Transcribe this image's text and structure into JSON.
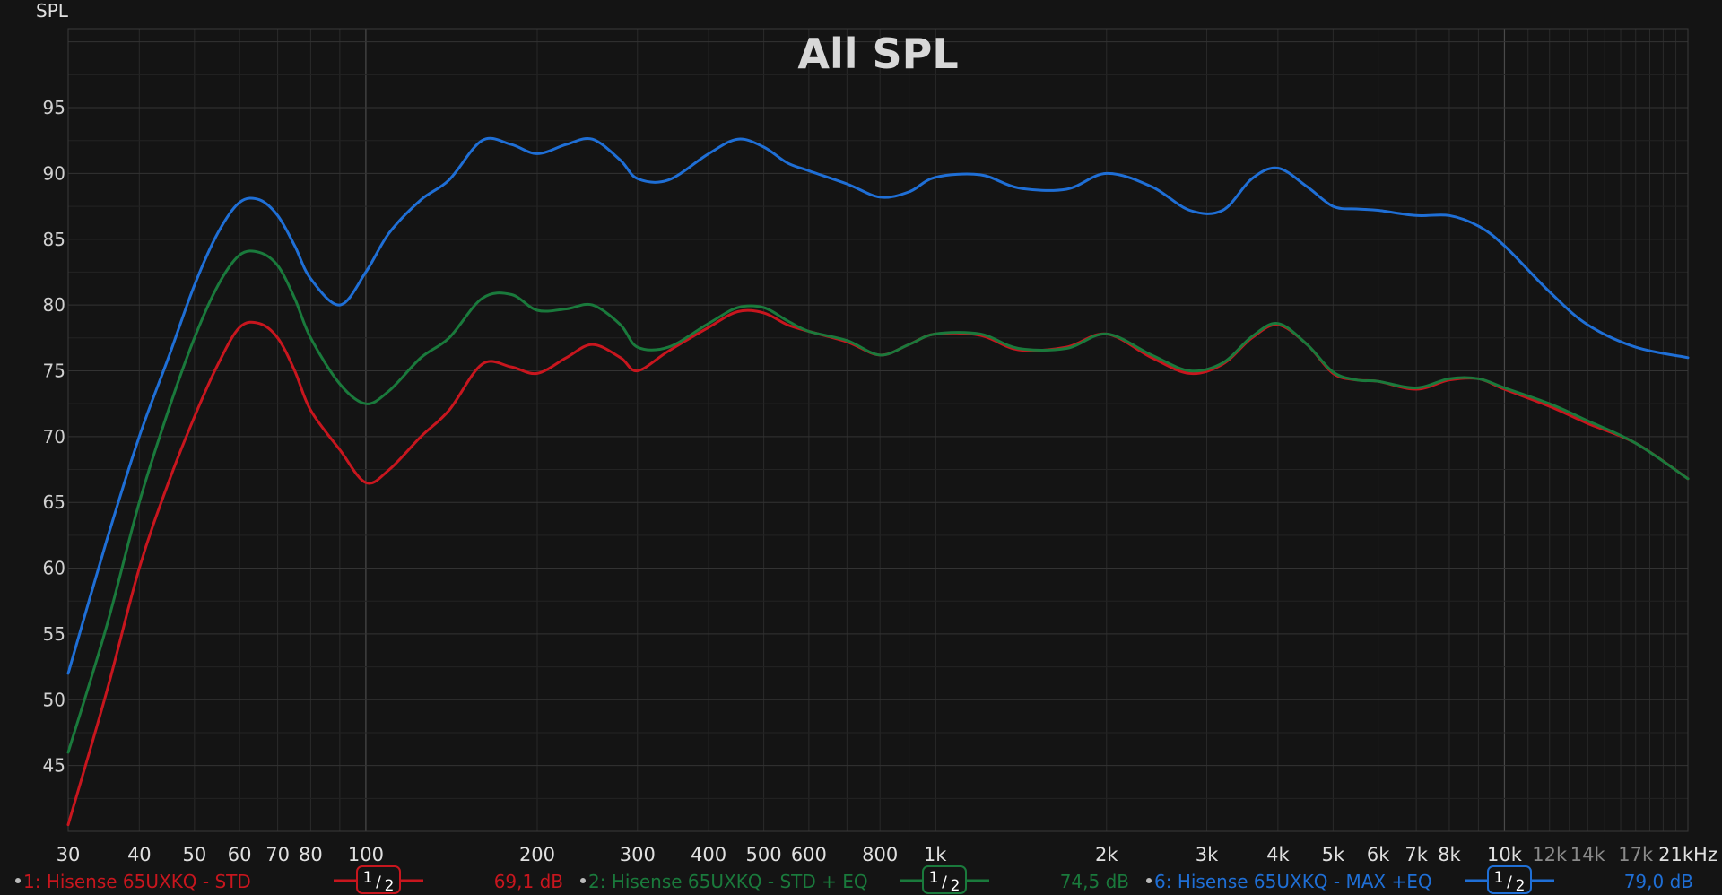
{
  "chart_data": {
    "type": "line",
    "title": "All SPL",
    "ylabel": "SPL",
    "xlabel": "",
    "x_scale": "log",
    "xlim": [
      30,
      21000
    ],
    "ylim": [
      40,
      101
    ],
    "grid": true,
    "y_ticks": [
      45,
      50,
      55,
      60,
      65,
      70,
      75,
      80,
      85,
      90,
      95
    ],
    "x_ticks": [
      {
        "label": "30",
        "value": 30,
        "major": true
      },
      {
        "label": "40",
        "value": 40,
        "major": true
      },
      {
        "label": "50",
        "value": 50,
        "major": true
      },
      {
        "label": "60",
        "value": 60,
        "major": true
      },
      {
        "label": "70",
        "value": 70,
        "major": true
      },
      {
        "label": "80",
        "value": 80,
        "major": true
      },
      {
        "label": "100",
        "value": 100,
        "major": true
      },
      {
        "label": "200",
        "value": 200,
        "major": true
      },
      {
        "label": "300",
        "value": 300,
        "major": true
      },
      {
        "label": "400",
        "value": 400,
        "major": true
      },
      {
        "label": "500",
        "value": 500,
        "major": true
      },
      {
        "label": "600",
        "value": 600,
        "major": true
      },
      {
        "label": "800",
        "value": 800,
        "major": true
      },
      {
        "label": "1k",
        "value": 1000,
        "major": true
      },
      {
        "label": "2k",
        "value": 2000,
        "major": true
      },
      {
        "label": "3k",
        "value": 3000,
        "major": true
      },
      {
        "label": "4k",
        "value": 4000,
        "major": true
      },
      {
        "label": "5k",
        "value": 5000,
        "major": true
      },
      {
        "label": "6k",
        "value": 6000,
        "major": true
      },
      {
        "label": "7k",
        "value": 7000,
        "major": true
      },
      {
        "label": "8k",
        "value": 8000,
        "major": true
      },
      {
        "label": "10k",
        "value": 10000,
        "major": true
      },
      {
        "label": "12k",
        "value": 12000,
        "major": false
      },
      {
        "label": "14k",
        "value": 14000,
        "major": false
      },
      {
        "label": "17k",
        "value": 17000,
        "major": false
      },
      {
        "label": "21kHz",
        "value": 21000,
        "major": true
      }
    ],
    "x": [
      30,
      35,
      40,
      45,
      50,
      55,
      60,
      65,
      70,
      75,
      80,
      90,
      100,
      110,
      125,
      140,
      160,
      180,
      200,
      225,
      250,
      280,
      300,
      340,
      400,
      450,
      500,
      550,
      600,
      700,
      800,
      900,
      1000,
      1200,
      1400,
      1700,
      2000,
      2400,
      2800,
      3200,
      3600,
      4000,
      4500,
      5000,
      5500,
      6000,
      7000,
      8000,
      9000,
      10000,
      12000,
      14000,
      17000,
      21000
    ],
    "series": [
      {
        "name": "1: Hisense 65UXKQ - STD",
        "color": "#c8161e",
        "legend_value": "69,1 dB",
        "smoothing": "1/2",
        "values": [
          40.5,
          50.5,
          60,
          66.5,
          71.5,
          75.5,
          78.3,
          78.6,
          77.5,
          75,
          72,
          69,
          66.5,
          67.5,
          70,
          72,
          75.5,
          75.3,
          74.8,
          76,
          77,
          76,
          75,
          76.5,
          78.3,
          79.5,
          79.4,
          78.5,
          78,
          77.2,
          76.2,
          77,
          77.8,
          77.7,
          76.6,
          76.8,
          77.8,
          76,
          74.8,
          75.5,
          77.5,
          78.5,
          77,
          74.8,
          74.3,
          74.2,
          73.6,
          74.3,
          74.4,
          73.6,
          72.3,
          71,
          69.5,
          66.8
        ]
      },
      {
        "name": "2: Hisense 65UXKQ - STD + EQ",
        "color": "#1a7a3c",
        "legend_value": "74,5 dB",
        "smoothing": "1/2",
        "values": [
          46,
          55.5,
          65,
          72,
          77.5,
          81.5,
          83.8,
          84,
          83,
          80.5,
          77.5,
          74,
          72.5,
          73.5,
          76,
          77.5,
          80.5,
          80.8,
          79.6,
          79.7,
          80,
          78.5,
          76.8,
          76.8,
          78.6,
          79.8,
          79.8,
          78.8,
          78,
          77.3,
          76.2,
          77,
          77.8,
          77.8,
          76.7,
          76.7,
          77.8,
          76.2,
          75,
          75.6,
          77.6,
          78.6,
          77,
          74.9,
          74.3,
          74.2,
          73.7,
          74.4,
          74.4,
          73.7,
          72.5,
          71.2,
          69.5,
          66.8
        ]
      },
      {
        "name": "6: Hisense 65UXKQ - MAX +EQ",
        "color": "#1f6fd6",
        "legend_value": "79,0 dB",
        "smoothing": "1/2",
        "values": [
          52,
          62,
          70,
          76,
          81.5,
          85.5,
          87.8,
          88,
          86.8,
          84.5,
          82,
          80,
          82.5,
          85.5,
          88,
          89.5,
          92.5,
          92.2,
          91.5,
          92.2,
          92.6,
          91,
          89.6,
          89.5,
          91.5,
          92.6,
          92,
          90.8,
          90.2,
          89.2,
          88.2,
          88.6,
          89.7,
          89.9,
          88.9,
          88.8,
          90,
          89,
          87.2,
          87.2,
          89.6,
          90.4,
          89,
          87.5,
          87.3,
          87.2,
          86.8,
          86.8,
          86,
          84.5,
          81,
          78.5,
          76.8,
          76
        ]
      }
    ]
  }
}
